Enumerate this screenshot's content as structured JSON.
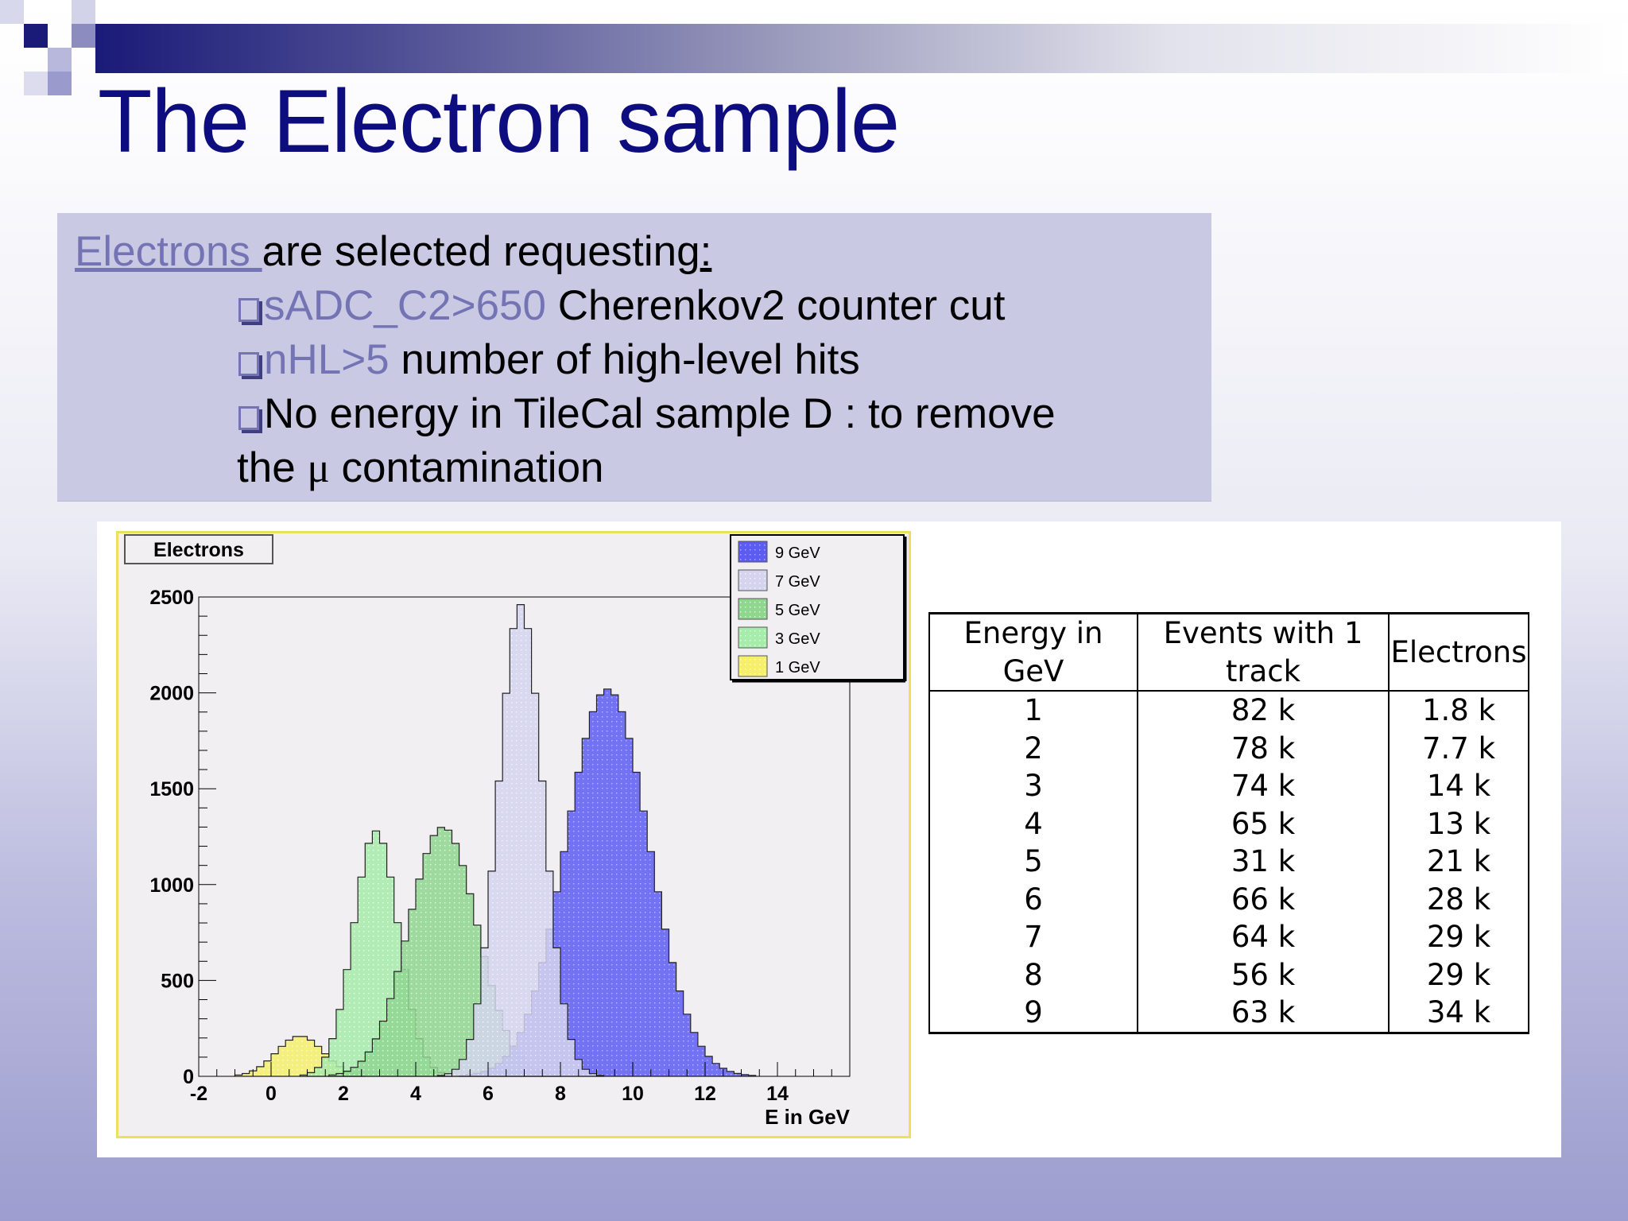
{
  "slide": {
    "title": "The Electron sample",
    "intro_keyword": "Electrons ",
    "intro_rest": "are selected requesting",
    "intro_colon": ":",
    "bullets": [
      {
        "code": "sADC_C2>650",
        "text": " Cherenkov2 counter cut"
      },
      {
        "code": "nHL>5",
        "text": " number of high-level hits"
      },
      {
        "code": "",
        "text": "No energy in TileCal sample D : to remove"
      }
    ],
    "continuation_prefix": "the ",
    "mu_symbol": "μ",
    "continuation_suffix": " contamination"
  },
  "colors": {
    "title": "#0d0d80",
    "highlight": "#7474b4",
    "text_box": "#c9c9e4",
    "chart_frame_border": "#ece15a"
  },
  "chart_data": {
    "type": "area",
    "title": "Electrons",
    "xlabel": "E in GeV",
    "ylabel": "",
    "xlim": [
      -2,
      16
    ],
    "ylim": [
      0,
      2500
    ],
    "x_ticks": [
      "-2",
      "0",
      "2",
      "4",
      "6",
      "8",
      "10",
      "12",
      "14"
    ],
    "y_ticks": [
      "0",
      "500",
      "1000",
      "1500",
      "2000",
      "2500"
    ],
    "legend_position": "top-right",
    "series": [
      {
        "name": "9 GeV",
        "color": "#5c5cf2",
        "mean": 9.3,
        "sigma": 1.15,
        "peak": 2020
      },
      {
        "name": "7 GeV",
        "color": "#d4d4ee",
        "mean": 6.9,
        "sigma": 0.62,
        "peak": 2460
      },
      {
        "name": "5 GeV",
        "color": "#8fd68f",
        "mean": 4.75,
        "sigma": 0.95,
        "peak": 1300
      },
      {
        "name": "3 GeV",
        "color": "#a6ecaa",
        "mean": 2.9,
        "sigma": 0.62,
        "peak": 1280
      },
      {
        "name": "1 GeV",
        "color": "#f6ef6c",
        "mean": 0.8,
        "sigma": 0.65,
        "peak": 210
      }
    ]
  },
  "table": {
    "headers": [
      "Energy in GeV",
      "Events with 1 track",
      "Electrons"
    ],
    "rows": [
      [
        "1",
        "82 k",
        "1.8 k"
      ],
      [
        "2",
        "78 k",
        "7.7 k"
      ],
      [
        "3",
        "74 k",
        "14 k"
      ],
      [
        "4",
        "65 k",
        "13 k"
      ],
      [
        "5",
        "31 k",
        "21 k"
      ],
      [
        "6",
        "66 k",
        "28 k"
      ],
      [
        "7",
        "64 k",
        "29 k"
      ],
      [
        "8",
        "56 k",
        "29 k"
      ],
      [
        "9",
        "63 k",
        "34 k"
      ]
    ]
  }
}
